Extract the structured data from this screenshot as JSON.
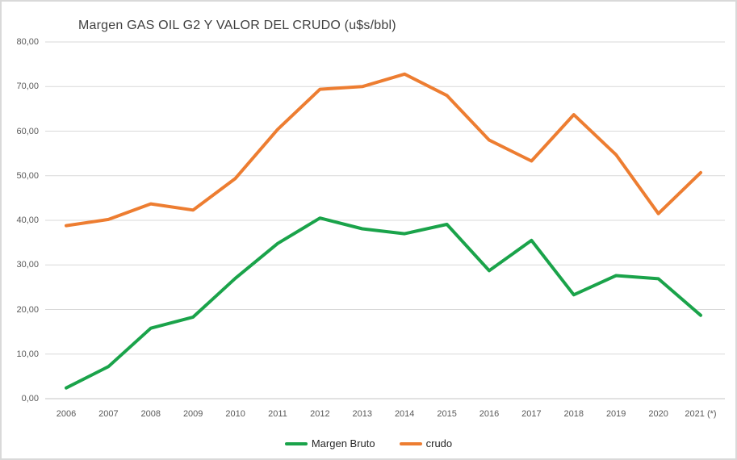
{
  "chart_data": {
    "type": "line",
    "title": "Margen GAS OIL G2 Y VALOR DEL CRUDO (u$s/bbl)",
    "xlabel": "",
    "ylabel": "",
    "ylim": [
      0,
      80
    ],
    "grid": "horizontal",
    "legend_position": "bottom-center",
    "categories": [
      "2006",
      "2007",
      "2008",
      "2009",
      "2010",
      "2011",
      "2012",
      "2013",
      "2014",
      "2015",
      "2016",
      "2017",
      "2018",
      "2019",
      "2020",
      "2021 (*)"
    ],
    "y_ticks": [
      {
        "value": 80,
        "label": "80,00"
      },
      {
        "value": 70,
        "label": "70,00"
      },
      {
        "value": 60,
        "label": "60,00"
      },
      {
        "value": 50,
        "label": "50,00"
      },
      {
        "value": 40,
        "label": "40,00"
      },
      {
        "value": 30,
        "label": "30,00"
      },
      {
        "value": 20,
        "label": "20,00"
      },
      {
        "value": 10,
        "label": "10,00"
      },
      {
        "value": 0,
        "label": "0,00"
      }
    ],
    "series": [
      {
        "name": "Margen Bruto",
        "color": "#1aa34a",
        "values": [
          2.4,
          7.2,
          15.8,
          18.3,
          27.0,
          34.8,
          40.5,
          38.1,
          37.0,
          39.1,
          28.7,
          35.5,
          23.3,
          27.6,
          26.9,
          18.7
        ]
      },
      {
        "name": "crudo",
        "color": "#ed7d31",
        "values": [
          38.8,
          40.2,
          43.7,
          42.3,
          49.4,
          60.4,
          69.4,
          70.0,
          72.8,
          68.0,
          58.0,
          53.3,
          63.7,
          54.7,
          41.5,
          50.7
        ]
      }
    ],
    "colors": {
      "gridline": "#d9d9d9",
      "axis_text": "#595959",
      "title_text": "#3f3f3f",
      "legend_text": "#262626",
      "background": "#ffffff"
    }
  }
}
